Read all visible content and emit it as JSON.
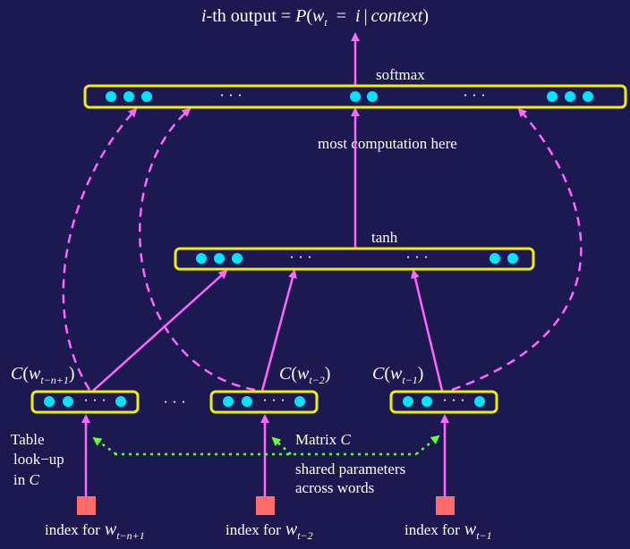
{
  "colors": {
    "background": "#1c1950",
    "layer_border": "#f0f000",
    "neuron": "#00e5ff",
    "arrow": "#ff66ff",
    "shared_arrow": "#66ff33",
    "index_box": "#ff6b6b",
    "text": "#ffffff"
  },
  "title": {
    "prefix": "i",
    "middle": "-th output = ",
    "p": "P",
    "open": "(",
    "w": "w",
    "w_sub": "t",
    "equals": "=",
    "i": "i",
    "bar": "|",
    "context": "context",
    "close": ")"
  },
  "layers": {
    "softmax_label": "softmax",
    "tanh_label": "tanh",
    "most_computation": "most computation here",
    "dots": "· · ·"
  },
  "embeddings": {
    "c": "C",
    "open": "(",
    "w": "w",
    "close": ")",
    "sub_n1": "t−n+1",
    "sub_2": "t−2",
    "sub_1": "t−1",
    "between_dots": "· · ·"
  },
  "annotations": {
    "table_lines": [
      "Table",
      "look−up",
      "in"
    ],
    "table_c": "C",
    "matrix": "Matrix",
    "matrix_c": "C",
    "shared_line1": "shared parameters",
    "shared_line2": "across words"
  },
  "indices": {
    "prefix": "index for",
    "w": "w",
    "sub_n1": "t−n+1",
    "sub_2": "t−2",
    "sub_1": "t−1"
  }
}
